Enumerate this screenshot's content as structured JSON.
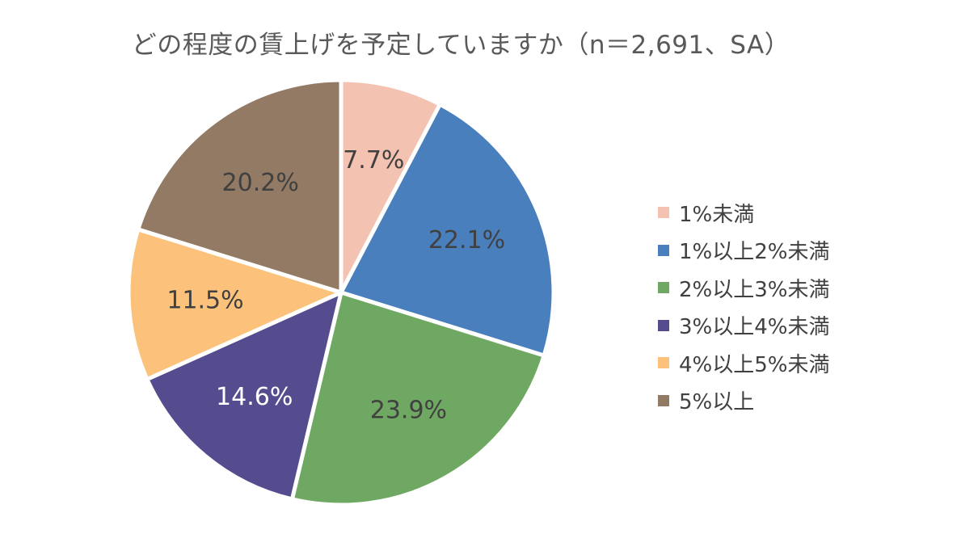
{
  "chart_data": {
    "type": "pie",
    "title": "どの程度の賃上げを予定していますか（n＝2,691、SA）",
    "categories": [
      "1%未満",
      "1%以上2%未満",
      "2%以上3%未満",
      "3%以上4%未満",
      "4%以上5%未満",
      "5%以上"
    ],
    "values": [
      7.7,
      22.1,
      23.9,
      14.6,
      11.5,
      20.2
    ],
    "data_labels": [
      "7.7%",
      "22.1%",
      "23.9%",
      "14.6%",
      "11.5%",
      "20.2%"
    ],
    "colors": [
      "#F4C2B1",
      "#4A7FBE",
      "#6FA862",
      "#544C8E",
      "#FCC27C",
      "#937A65"
    ],
    "label_colors": [
      "#404040",
      "#404040",
      "#404040",
      "#ffffff",
      "#404040",
      "#404040"
    ],
    "start_angle_deg": 0,
    "direction": "clockwise",
    "legend_position": "right"
  }
}
